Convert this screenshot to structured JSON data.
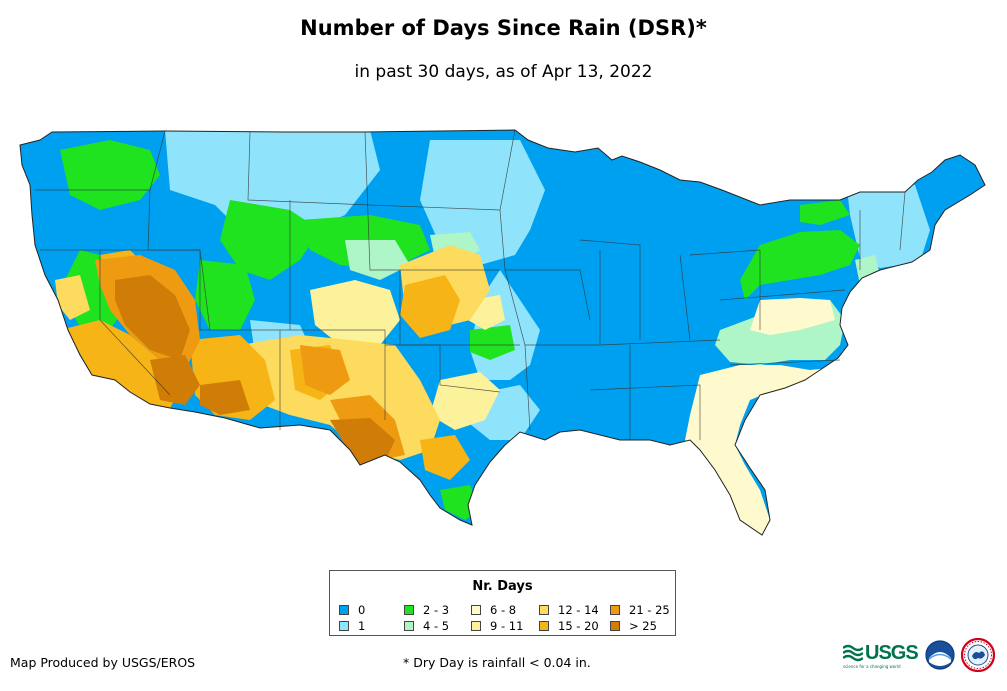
{
  "title": "Number of Days Since Rain (DSR)*",
  "subtitle": "in past 30 days, as of Apr 13, 2022",
  "legend": {
    "title": "Nr. Days",
    "items": [
      {
        "label": "0",
        "color": "#00a0f0"
      },
      {
        "label": "1",
        "color": "#8fe4fb"
      },
      {
        "label": "2 - 3",
        "color": "#1ee31e"
      },
      {
        "label": "4 - 5",
        "color": "#aef5c7"
      },
      {
        "label": "6 - 8",
        "color": "#fffacd"
      },
      {
        "label": "9 - 11",
        "color": "#fbf29b"
      },
      {
        "label": "12 - 14",
        "color": "#fcdb5e"
      },
      {
        "label": "15 - 20",
        "color": "#f7b416"
      },
      {
        "label": "21 - 25",
        "color": "#ee9b12"
      },
      {
        "label": "> 25",
        "color": "#cf7d06"
      }
    ]
  },
  "credit": "Map Produced by USGS/EROS",
  "footnote": "* Dry Day is rainfall < 0.04 in.",
  "logos": {
    "usgs": "USGS",
    "usgs_tagline": "science for a changing world",
    "noaa": "noaa"
  }
}
